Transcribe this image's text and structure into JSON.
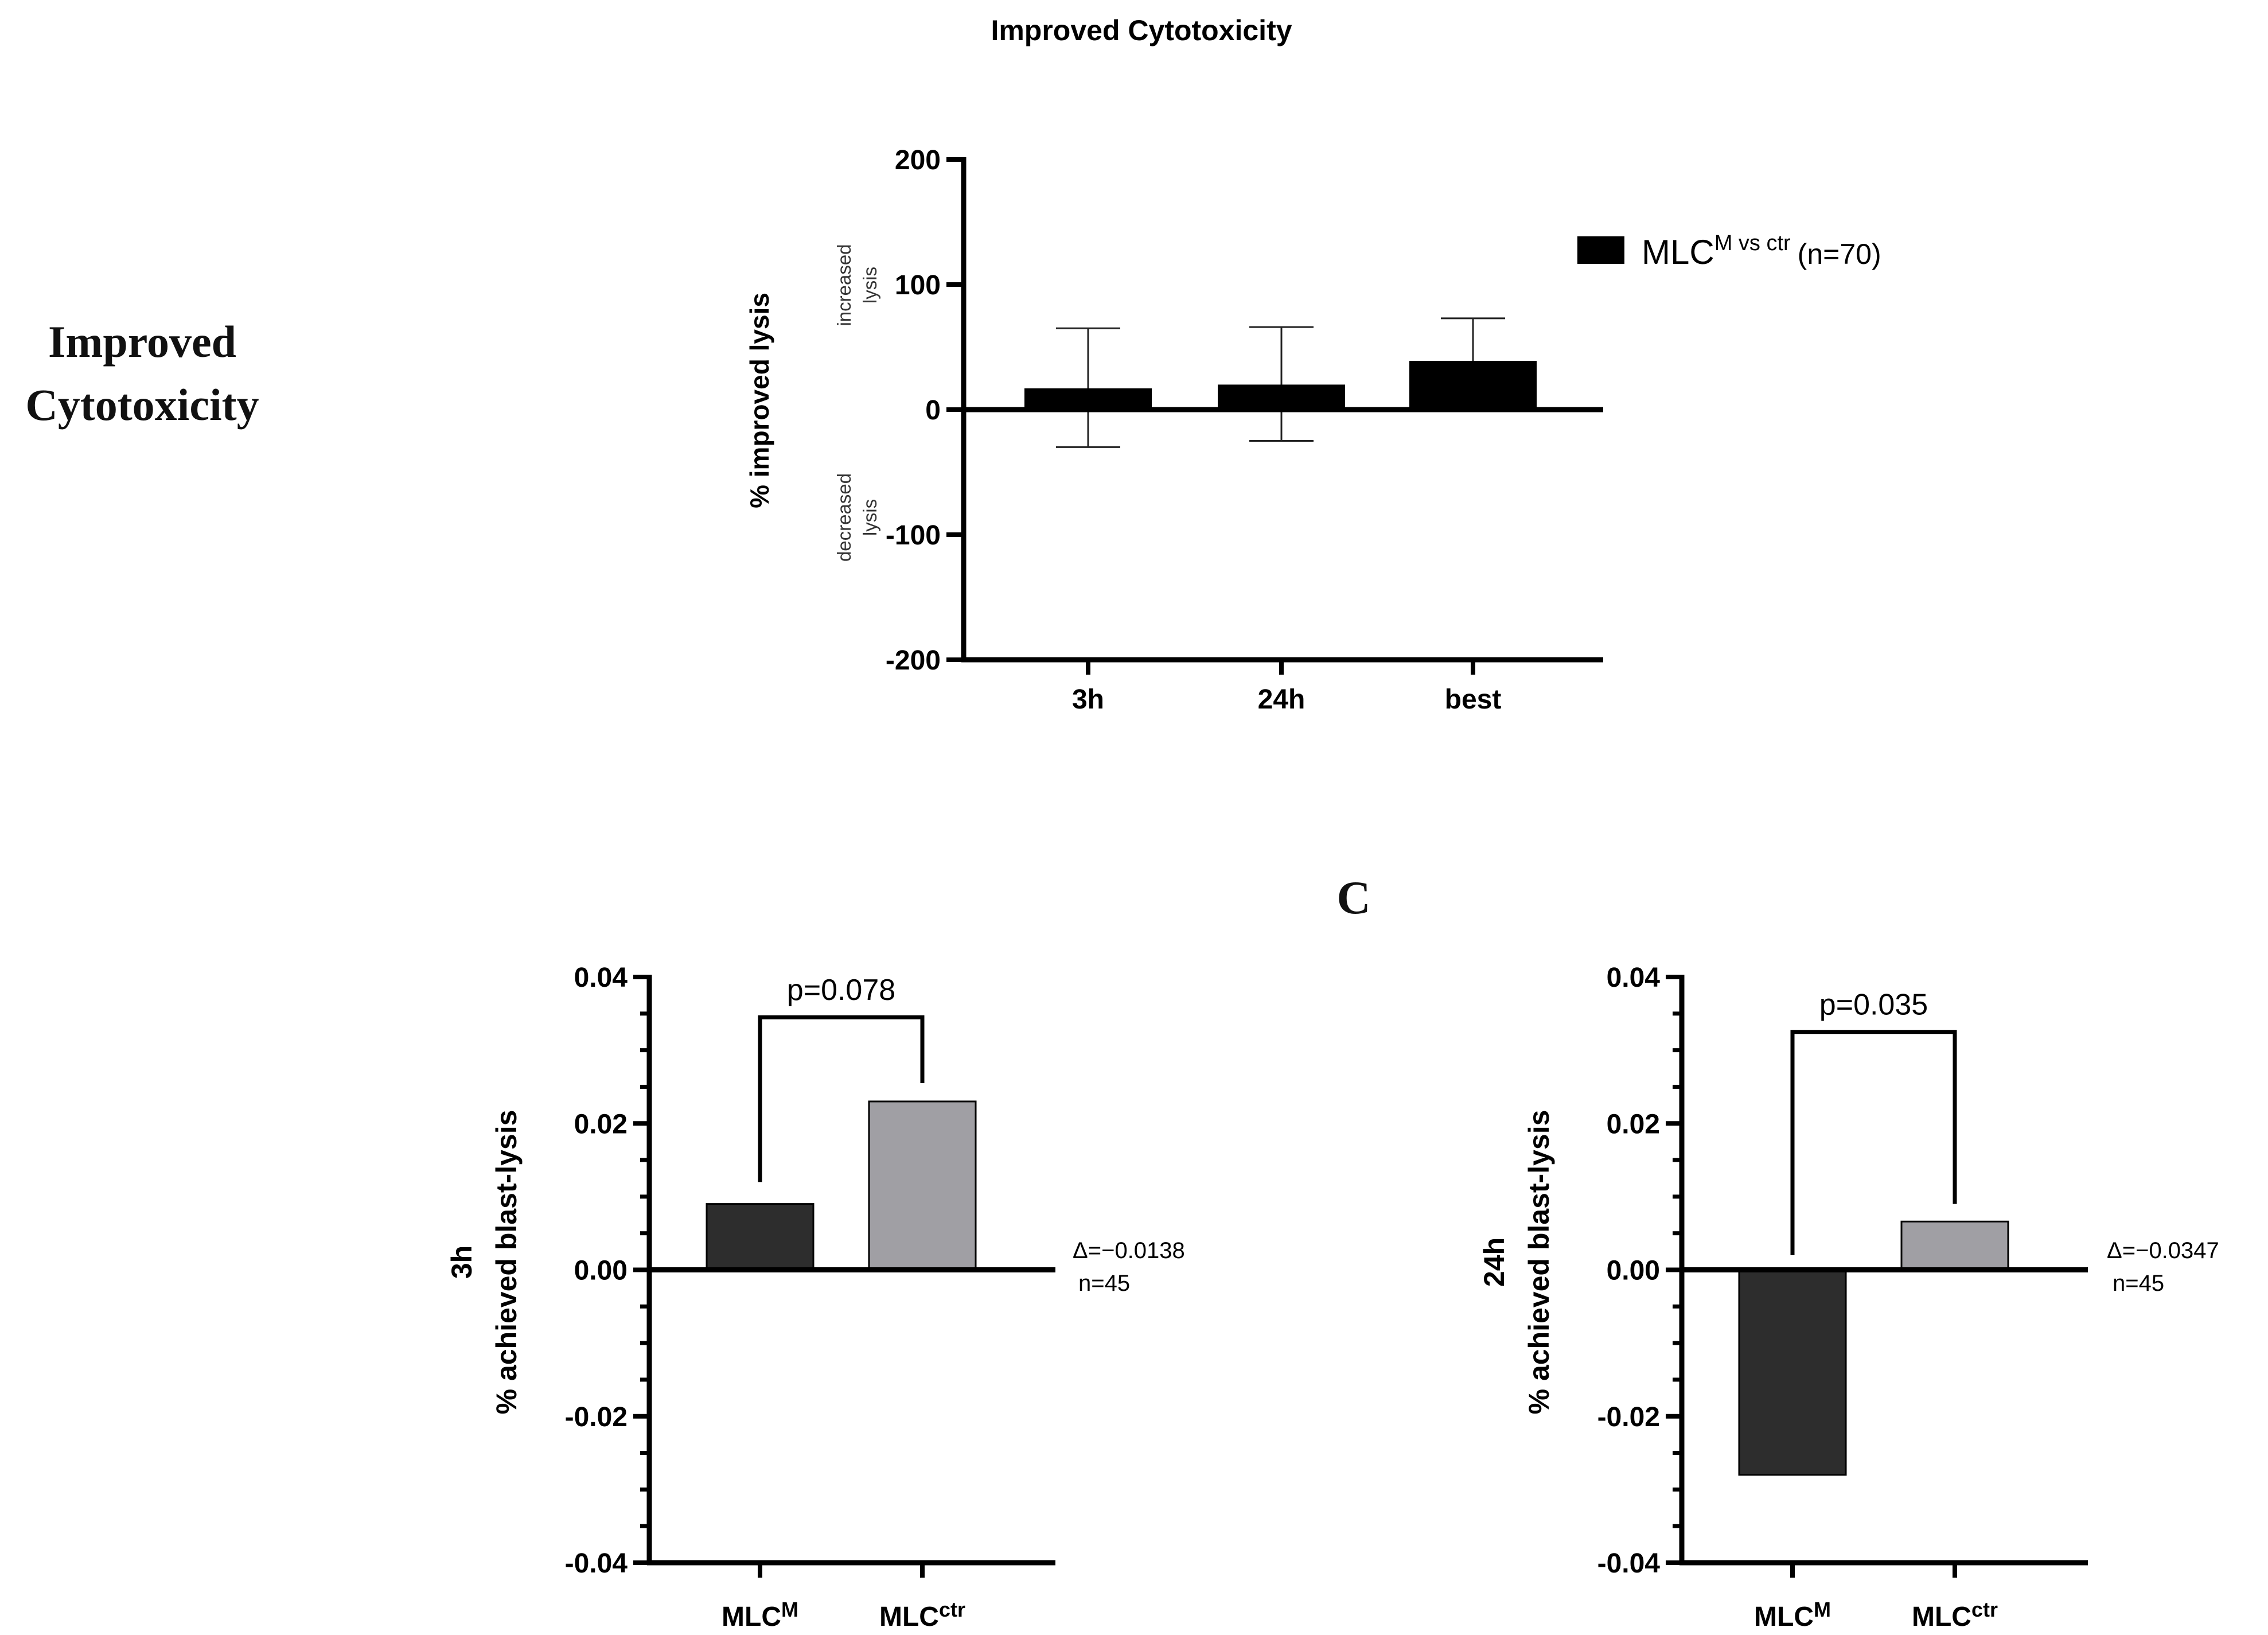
{
  "side_label": {
    "line1": "Improved",
    "line2": "Cytotoxicity"
  },
  "panel_letter": "C",
  "chart_data": [
    {
      "id": "improved",
      "type": "bar",
      "title": "Improved Cytotoxicity",
      "ylabel": "% improved lysis",
      "y_annotations": {
        "up": [
          "increased",
          "lysis"
        ],
        "down": [
          "decreased",
          "lysis"
        ]
      },
      "categories": [
        "3h",
        "24h",
        "best"
      ],
      "series": [
        {
          "name": "MLC",
          "name_sup": "M vs ctr",
          "name_suffix": "(n=70)",
          "values": [
            17,
            20,
            39
          ],
          "error_upper": [
            65,
            66,
            73
          ],
          "error_lower": [
            -30,
            -25,
            0
          ]
        }
      ],
      "ylim": [
        -200,
        200
      ],
      "yticks": [
        -200,
        -100,
        0,
        100,
        200
      ],
      "ytick_labels": [
        "-200",
        "-100",
        "0",
        "100",
        "200"
      ],
      "color": "#000000"
    },
    {
      "id": "c3h",
      "type": "bar",
      "ylabel_bold": "3h",
      "ylabel": "% achieved blast-lysis",
      "categories": [
        "MLC",
        "MLC"
      ],
      "category_sups": [
        "M",
        "ctr"
      ],
      "values": [
        0.009,
        0.023
      ],
      "colors": [
        "#2d2d2d",
        "#a09fa4"
      ],
      "ylim": [
        -0.04,
        0.04
      ],
      "yticks": [
        -0.04,
        -0.02,
        0.0,
        0.02,
        0.04
      ],
      "ytick_labels": [
        "-0.04",
        "-0.02",
        "0.00",
        "0.02",
        "0.04"
      ],
      "pvalue": "p=0.078",
      "bracket_y": 0.0345,
      "bracket_ends": [
        0.012,
        0.0255
      ],
      "delta": "Δ=−0.0138",
      "n": "n=45"
    },
    {
      "id": "c24h",
      "type": "bar",
      "ylabel_bold": "24h",
      "ylabel": "% achieved blast-lysis",
      "categories": [
        "MLC",
        "MLC"
      ],
      "category_sups": [
        "M",
        "ctr"
      ],
      "values": [
        -0.028,
        0.0066
      ],
      "colors": [
        "#2d2d2d",
        "#a09fa4"
      ],
      "ylim": [
        -0.04,
        0.04
      ],
      "yticks": [
        -0.04,
        -0.02,
        0.0,
        0.02,
        0.04
      ],
      "ytick_labels": [
        "-0.04",
        "-0.02",
        "0.00",
        "0.02",
        "0.04"
      ],
      "pvalue": "p=0.035",
      "bracket_y": 0.0325,
      "bracket_ends": [
        0.002,
        0.009
      ],
      "delta": "Δ=−0.0347",
      "n": "n=45"
    }
  ]
}
